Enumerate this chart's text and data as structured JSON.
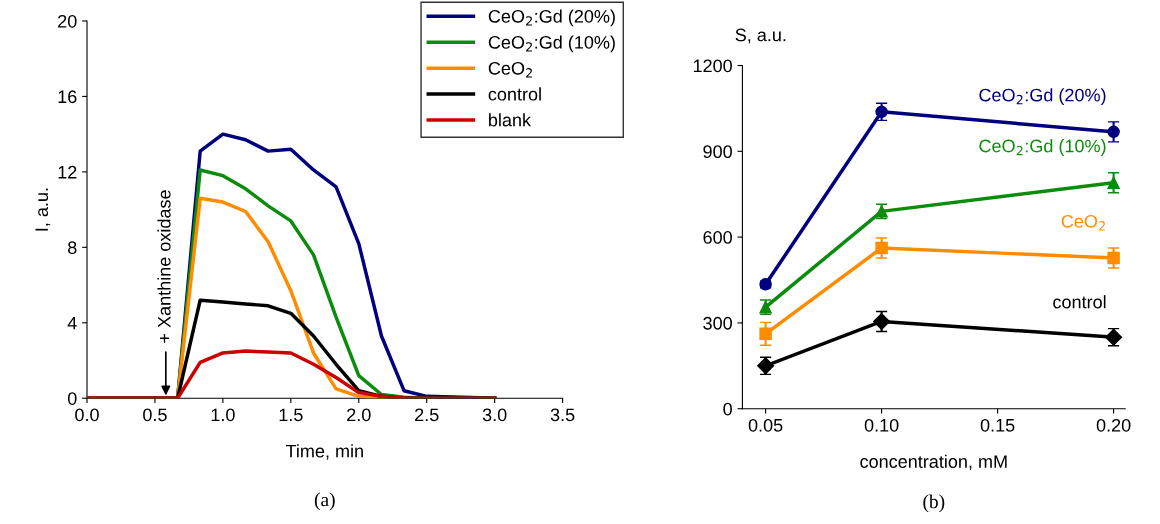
{
  "chart_data": [
    {
      "type": "line",
      "xlabel": "Time, min",
      "ylabel": "I, a.u.",
      "x": [
        0,
        0.667,
        0.833,
        1.0,
        1.167,
        1.333,
        1.5,
        1.667,
        1.833,
        2.0,
        2.167,
        2.333,
        2.5,
        3.0
      ],
      "series": [
        {
          "name": "CeO$_{2}$:Gd (20%)",
          "color": "#00007f",
          "values": [
            0,
            0,
            13.1,
            14.0,
            13.7,
            13.1,
            13.2,
            12.1,
            11.2,
            8.2,
            3.3,
            0.4,
            0.1,
            0
          ]
        },
        {
          "name": "CeO$_{2}$:Gd (10%)",
          "color": "#0c8c0c",
          "values": [
            0,
            0,
            12.1,
            11.8,
            11.1,
            10.2,
            9.4,
            7.6,
            4.3,
            1.2,
            0.2,
            0.05,
            0,
            0
          ]
        },
        {
          "name": "CeO$_{2}$",
          "color": "#ff8c00",
          "values": [
            0,
            0,
            10.6,
            10.4,
            9.9,
            8.3,
            5.7,
            2.4,
            0.5,
            0.1,
            0,
            0,
            null,
            null
          ]
        },
        {
          "name": "control",
          "color": "#000000",
          "values": [
            0,
            0,
            5.2,
            5.1,
            5.0,
            4.9,
            4.5,
            3.3,
            1.8,
            0.4,
            0.1,
            0,
            0,
            0
          ]
        },
        {
          "name": "blank",
          "color": "#cc0000",
          "values": [
            0,
            0,
            1.9,
            2.4,
            2.5,
            2.45,
            2.4,
            1.8,
            1.1,
            0.3,
            0.1,
            0,
            0,
            0
          ]
        }
      ],
      "xlim": [
        0,
        3.5
      ],
      "xticks": [
        {
          "value": 0,
          "label": "0.0"
        },
        {
          "value": 0.5,
          "label": "0.5"
        },
        {
          "value": 1,
          "label": "1.0"
        },
        {
          "value": 1.5,
          "label": "1.5"
        },
        {
          "value": 2,
          "label": "2.0"
        },
        {
          "value": 2.5,
          "label": "2.5"
        },
        {
          "value": 3,
          "label": "3.0"
        },
        {
          "value": 3.5,
          "label": "3.5"
        }
      ],
      "ylim": [
        0,
        20
      ],
      "yticks": [
        0,
        4,
        8,
        12,
        16,
        20
      ],
      "annotations": [
        {
          "text": "+ Xanthine oxidase",
          "x": 0.58,
          "y": 0
        },
        "(a)"
      ],
      "legend": "top right",
      "marker": "none",
      "line_style": "solid",
      "grid": false
    },
    {
      "type": "line",
      "xlabel": "concentration, mM",
      "ylabel": "S, a.u.",
      "x": [
        0.05,
        0.1,
        0.2
      ],
      "series": [
        {
          "name": "CeO$_{2}$:Gd (20%)",
          "color": "#00007f",
          "marker": "circle",
          "values": [
            435,
            1038,
            968
          ],
          "errors": [
            12,
            30,
            35
          ]
        },
        {
          "name": "CeO$_{2}$:Gd (10%)",
          "color": "#0c8c0c",
          "marker": "triangle",
          "values": [
            355,
            690,
            790
          ],
          "errors": [
            25,
            25,
            35
          ]
        },
        {
          "name": "CeO$_{2}$",
          "color": "#ff8c00",
          "marker": "square",
          "values": [
            262,
            562,
            527
          ],
          "errors": [
            40,
            35,
            35
          ]
        },
        {
          "name": "control",
          "color": "#000000",
          "marker": "diamond",
          "values": [
            150,
            305,
            250
          ],
          "errors": [
            30,
            35,
            30
          ]
        }
      ],
      "xlim": [
        0.04,
        0.205
      ],
      "xticks": [
        {
          "value": 0.05,
          "label": "0.05"
        },
        {
          "value": 0.1,
          "label": "0.10"
        },
        {
          "value": 0.15,
          "label": "0.15"
        },
        {
          "value": 0.2,
          "label": "0.20"
        }
      ],
      "ylim": [
        0,
        1200
      ],
      "yticks": [
        0,
        300,
        600,
        900,
        1200
      ],
      "annotations": [
        "(b)"
      ],
      "legend": false,
      "line_style": "solid",
      "grid": false
    }
  ]
}
